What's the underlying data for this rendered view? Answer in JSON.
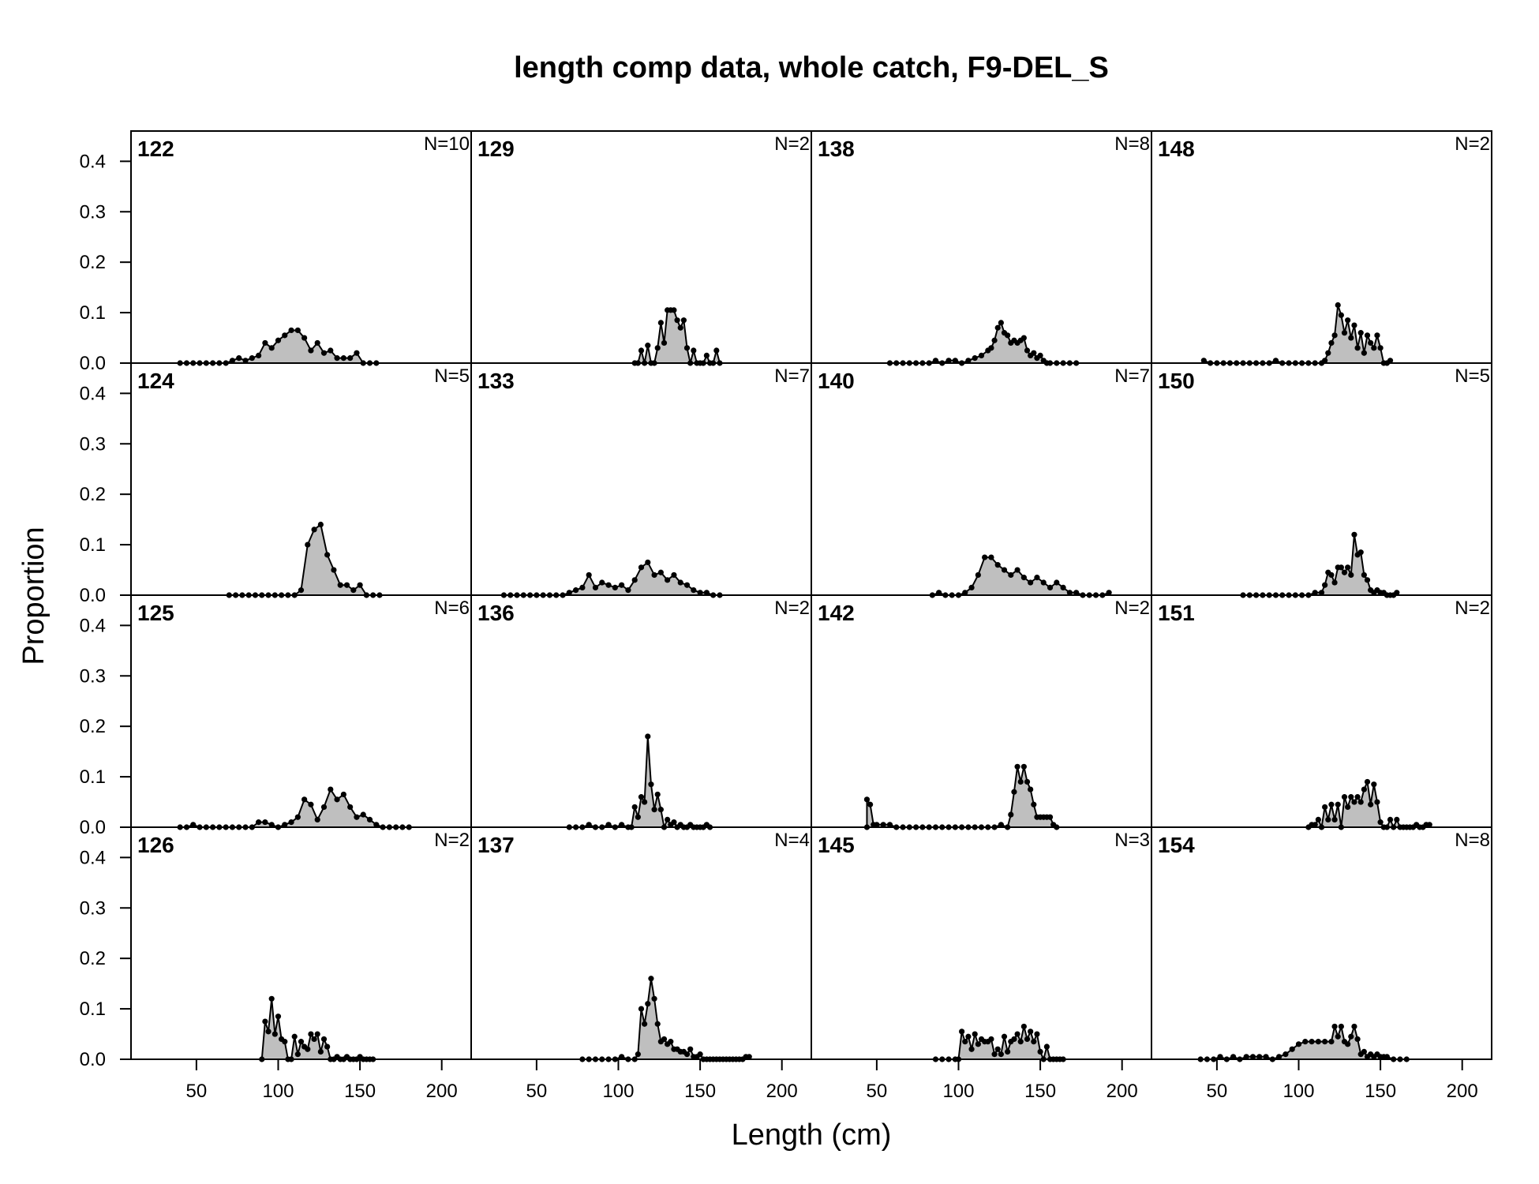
{
  "chart_data": {
    "type": "area",
    "title": "length comp data, whole catch, F9-DEL_S",
    "xlabel": "Length (cm)",
    "ylabel": "Proportion",
    "xlim": [
      10,
      218
    ],
    "ylim": [
      0,
      0.46
    ],
    "x_ticks": [
      "50",
      "100",
      "150",
      "200"
    ],
    "y_ticks": [
      "0.0",
      "0.1",
      "0.2",
      "0.3",
      "0.4"
    ],
    "layout": {
      "rows": 4,
      "cols": 4,
      "order": "column-major"
    },
    "fill_color": "#bfbfbf",
    "line_color": "#000000",
    "panels": [
      {
        "label": "122",
        "n": "N=10",
        "x": [
          40,
          44,
          48,
          52,
          56,
          60,
          64,
          68,
          72,
          76,
          80,
          84,
          88,
          92,
          96,
          100,
          104,
          108,
          112,
          116,
          120,
          124,
          128,
          132,
          136,
          140,
          144,
          148,
          152,
          156,
          160
        ],
        "y": [
          0.0,
          0.0,
          0.0,
          0.0,
          0.0,
          0.0,
          0.0,
          0.0,
          0.005,
          0.01,
          0.005,
          0.01,
          0.015,
          0.04,
          0.03,
          0.045,
          0.055,
          0.065,
          0.065,
          0.05,
          0.025,
          0.04,
          0.02,
          0.025,
          0.01,
          0.01,
          0.01,
          0.02,
          0.0,
          0.0,
          0.0
        ]
      },
      {
        "label": "124",
        "n": "N=5",
        "x": [
          70,
          74,
          78,
          82,
          86,
          90,
          94,
          98,
          102,
          106,
          110,
          114,
          118,
          122,
          126,
          130,
          134,
          138,
          142,
          146,
          150,
          154,
          158,
          162
        ],
        "y": [
          0.0,
          0.0,
          0.0,
          0.0,
          0.0,
          0.0,
          0.0,
          0.0,
          0.0,
          0.0,
          0.0,
          0.01,
          0.1,
          0.13,
          0.14,
          0.08,
          0.05,
          0.02,
          0.02,
          0.01,
          0.02,
          0.0,
          0.0,
          0.0
        ]
      },
      {
        "label": "125",
        "n": "N=6",
        "x": [
          40,
          44,
          48,
          52,
          56,
          60,
          64,
          68,
          72,
          76,
          80,
          84,
          88,
          92,
          96,
          100,
          104,
          108,
          112,
          116,
          120,
          124,
          128,
          132,
          136,
          140,
          144,
          148,
          152,
          156,
          160,
          164,
          168,
          172,
          176,
          180
        ],
        "y": [
          0.0,
          0.0,
          0.005,
          0.0,
          0.0,
          0.0,
          0.0,
          0.0,
          0.0,
          0.0,
          0.0,
          0.0,
          0.01,
          0.01,
          0.005,
          0.0,
          0.005,
          0.01,
          0.02,
          0.055,
          0.045,
          0.015,
          0.04,
          0.075,
          0.055,
          0.065,
          0.04,
          0.02,
          0.025,
          0.015,
          0.005,
          0.0,
          0.0,
          0.0,
          0.0,
          0.0
        ]
      },
      {
        "label": "126",
        "n": "N=2",
        "x": [
          90,
          92,
          94,
          96,
          98,
          100,
          102,
          104,
          106,
          108,
          110,
          112,
          114,
          116,
          118,
          120,
          122,
          124,
          126,
          128,
          130,
          132,
          134,
          136,
          138,
          140,
          142,
          144,
          146,
          148,
          150,
          152,
          154,
          156,
          158
        ],
        "y": [
          0.0,
          0.075,
          0.055,
          0.12,
          0.05,
          0.085,
          0.04,
          0.035,
          0.0,
          0.0,
          0.045,
          0.01,
          0.035,
          0.025,
          0.02,
          0.05,
          0.04,
          0.05,
          0.015,
          0.04,
          0.025,
          0.0,
          0.0,
          0.005,
          0.0,
          0.0,
          0.005,
          0.0,
          0.0,
          0.0,
          0.005,
          0.0,
          0.0,
          0.0,
          0.0
        ]
      },
      {
        "label": "129",
        "n": "N=2",
        "x": [
          110,
          112,
          114,
          116,
          118,
          120,
          122,
          124,
          126,
          128,
          130,
          132,
          134,
          136,
          138,
          140,
          142,
          144,
          146,
          148,
          150,
          152,
          154,
          156,
          158,
          160,
          162
        ],
        "y": [
          0.0,
          0.0,
          0.025,
          0.0,
          0.035,
          0.0,
          0.0,
          0.03,
          0.08,
          0.04,
          0.105,
          0.105,
          0.105,
          0.085,
          0.07,
          0.085,
          0.03,
          0.0,
          0.025,
          0.0,
          0.0,
          0.0,
          0.015,
          0.0,
          0.0,
          0.025,
          0.0
        ]
      },
      {
        "label": "133",
        "n": "N=7",
        "x": [
          30,
          34,
          38,
          42,
          46,
          50,
          54,
          58,
          62,
          66,
          70,
          74,
          78,
          82,
          86,
          90,
          94,
          98,
          102,
          106,
          110,
          114,
          118,
          122,
          126,
          130,
          134,
          138,
          142,
          146,
          150,
          154,
          158,
          162
        ],
        "y": [
          0.0,
          0.0,
          0.0,
          0.0,
          0.0,
          0.0,
          0.0,
          0.0,
          0.0,
          0.0,
          0.005,
          0.01,
          0.015,
          0.04,
          0.015,
          0.025,
          0.02,
          0.015,
          0.02,
          0.01,
          0.03,
          0.055,
          0.065,
          0.04,
          0.045,
          0.03,
          0.04,
          0.025,
          0.02,
          0.01,
          0.005,
          0.005,
          0.0,
          0.0
        ]
      },
      {
        "label": "136",
        "n": "N=2",
        "x": [
          70,
          74,
          78,
          82,
          86,
          90,
          94,
          98,
          102,
          106,
          108,
          110,
          112,
          114,
          116,
          118,
          120,
          122,
          124,
          126,
          128,
          130,
          132,
          134,
          136,
          138,
          140,
          142,
          144,
          146,
          148,
          150,
          152,
          154,
          156
        ],
        "y": [
          0.0,
          0.0,
          0.0,
          0.005,
          0.0,
          0.0,
          0.005,
          0.0,
          0.005,
          0.0,
          0.0,
          0.04,
          0.02,
          0.06,
          0.05,
          0.18,
          0.085,
          0.035,
          0.065,
          0.035,
          0.0,
          0.015,
          0.005,
          0.01,
          0.0,
          0.005,
          0.0,
          0.0,
          0.005,
          0.0,
          0.0,
          0.0,
          0.0,
          0.005,
          0.0
        ]
      },
      {
        "label": "137",
        "n": "N=4",
        "x": [
          78,
          82,
          86,
          90,
          94,
          98,
          102,
          106,
          110,
          112,
          114,
          116,
          118,
          120,
          122,
          124,
          126,
          128,
          130,
          132,
          134,
          136,
          138,
          140,
          142,
          144,
          146,
          148,
          150,
          152,
          154,
          156,
          158,
          160,
          162,
          164,
          166,
          168,
          170,
          172,
          174,
          176,
          178,
          180
        ],
        "y": [
          0.0,
          0.0,
          0.0,
          0.0,
          0.0,
          0.0,
          0.005,
          0.0,
          0.0,
          0.01,
          0.1,
          0.07,
          0.11,
          0.16,
          0.12,
          0.07,
          0.035,
          0.04,
          0.03,
          0.035,
          0.02,
          0.02,
          0.015,
          0.015,
          0.01,
          0.02,
          0.005,
          0.005,
          0.01,
          0.0,
          0.0,
          0.0,
          0.0,
          0.0,
          0.0,
          0.0,
          0.0,
          0.0,
          0.0,
          0.0,
          0.0,
          0.0,
          0.005,
          0.005
        ]
      },
      {
        "label": "138",
        "n": "N=8",
        "x": [
          58,
          62,
          66,
          70,
          74,
          78,
          82,
          86,
          90,
          94,
          98,
          102,
          106,
          110,
          114,
          118,
          120,
          122,
          124,
          126,
          128,
          130,
          132,
          134,
          136,
          138,
          140,
          142,
          144,
          146,
          148,
          150,
          152,
          154,
          156,
          160,
          164,
          168,
          172
        ],
        "y": [
          0.0,
          0.0,
          0.0,
          0.0,
          0.0,
          0.0,
          0.0,
          0.005,
          0.0,
          0.005,
          0.005,
          0.0,
          0.005,
          0.01,
          0.015,
          0.025,
          0.03,
          0.045,
          0.07,
          0.08,
          0.06,
          0.055,
          0.04,
          0.045,
          0.04,
          0.045,
          0.05,
          0.025,
          0.015,
          0.02,
          0.01,
          0.015,
          0.005,
          0.0,
          0.0,
          0.0,
          0.0,
          0.0,
          0.0
        ]
      },
      {
        "label": "140",
        "n": "N=7",
        "x": [
          84,
          88,
          92,
          96,
          100,
          104,
          108,
          112,
          116,
          120,
          124,
          128,
          132,
          136,
          140,
          144,
          148,
          152,
          156,
          160,
          164,
          168,
          172,
          176,
          180,
          184,
          188,
          192
        ],
        "y": [
          0.0,
          0.005,
          0.0,
          0.0,
          0.0,
          0.005,
          0.015,
          0.04,
          0.075,
          0.075,
          0.06,
          0.05,
          0.04,
          0.05,
          0.035,
          0.025,
          0.035,
          0.025,
          0.015,
          0.025,
          0.015,
          0.005,
          0.005,
          0.0,
          0.0,
          0.0,
          0.0,
          0.005
        ]
      },
      {
        "label": "142",
        "n": "N=2",
        "x": [
          44,
          44,
          46,
          48,
          50,
          54,
          58,
          62,
          66,
          70,
          74,
          78,
          82,
          86,
          90,
          94,
          98,
          102,
          106,
          110,
          114,
          118,
          122,
          126,
          130,
          132,
          134,
          136,
          138,
          140,
          142,
          144,
          146,
          148,
          150,
          152,
          154,
          156,
          158,
          160
        ],
        "y": [
          0.0,
          0.055,
          0.045,
          0.005,
          0.005,
          0.005,
          0.005,
          0.0,
          0.0,
          0.0,
          0.0,
          0.0,
          0.0,
          0.0,
          0.0,
          0.0,
          0.0,
          0.0,
          0.0,
          0.0,
          0.0,
          0.0,
          0.0,
          0.005,
          0.0,
          0.025,
          0.07,
          0.12,
          0.09,
          0.12,
          0.09,
          0.075,
          0.045,
          0.02,
          0.02,
          0.02,
          0.02,
          0.02,
          0.005,
          0.0
        ]
      },
      {
        "label": "145",
        "n": "N=3",
        "x": [
          86,
          90,
          94,
          98,
          100,
          102,
          104,
          106,
          108,
          110,
          112,
          114,
          116,
          118,
          120,
          122,
          124,
          126,
          128,
          130,
          132,
          134,
          136,
          138,
          140,
          142,
          144,
          146,
          148,
          150,
          152,
          154,
          156,
          158,
          160,
          162,
          164
        ],
        "y": [
          0.0,
          0.0,
          0.0,
          0.0,
          0.0,
          0.055,
          0.035,
          0.045,
          0.02,
          0.05,
          0.03,
          0.04,
          0.035,
          0.035,
          0.04,
          0.01,
          0.02,
          0.01,
          0.045,
          0.015,
          0.035,
          0.04,
          0.05,
          0.035,
          0.065,
          0.04,
          0.055,
          0.035,
          0.05,
          0.015,
          0.0,
          0.025,
          0.0,
          0.0,
          0.0,
          0.0,
          0.0
        ]
      },
      {
        "label": "148",
        "n": "N=2",
        "x": [
          42,
          46,
          50,
          54,
          58,
          62,
          66,
          70,
          74,
          78,
          82,
          86,
          90,
          94,
          98,
          102,
          106,
          110,
          114,
          116,
          118,
          120,
          122,
          124,
          126,
          128,
          130,
          132,
          134,
          136,
          138,
          140,
          142,
          144,
          146,
          148,
          150,
          152,
          154,
          156
        ],
        "y": [
          0.005,
          0.0,
          0.0,
          0.0,
          0.0,
          0.0,
          0.0,
          0.0,
          0.0,
          0.0,
          0.0,
          0.005,
          0.0,
          0.0,
          0.0,
          0.0,
          0.0,
          0.0,
          0.0,
          0.005,
          0.02,
          0.04,
          0.055,
          0.115,
          0.095,
          0.06,
          0.085,
          0.05,
          0.075,
          0.03,
          0.06,
          0.02,
          0.055,
          0.04,
          0.03,
          0.055,
          0.03,
          0.0,
          0.0,
          0.005
        ]
      },
      {
        "label": "150",
        "n": "N=5",
        "x": [
          66,
          70,
          74,
          78,
          82,
          86,
          90,
          94,
          98,
          102,
          106,
          110,
          114,
          116,
          118,
          120,
          122,
          124,
          126,
          128,
          130,
          132,
          134,
          136,
          138,
          140,
          142,
          144,
          146,
          148,
          150,
          152,
          154,
          156,
          158,
          160
        ],
        "y": [
          0.0,
          0.0,
          0.0,
          0.0,
          0.0,
          0.0,
          0.0,
          0.0,
          0.0,
          0.0,
          0.0,
          0.005,
          0.005,
          0.02,
          0.045,
          0.04,
          0.025,
          0.055,
          0.055,
          0.045,
          0.055,
          0.04,
          0.12,
          0.08,
          0.085,
          0.04,
          0.03,
          0.01,
          0.005,
          0.01,
          0.005,
          0.005,
          0.0,
          0.0,
          0.0,
          0.005
        ]
      },
      {
        "label": "151",
        "n": "N=2",
        "x": [
          106,
          108,
          110,
          112,
          114,
          116,
          118,
          120,
          122,
          124,
          126,
          128,
          130,
          132,
          134,
          136,
          138,
          140,
          142,
          144,
          146,
          148,
          150,
          152,
          154,
          156,
          158,
          160,
          162,
          164,
          166,
          168,
          170,
          172,
          174,
          176,
          178,
          180
        ],
        "y": [
          0.0,
          0.005,
          0.005,
          0.015,
          0.0,
          0.04,
          0.015,
          0.045,
          0.015,
          0.045,
          0.0,
          0.06,
          0.04,
          0.06,
          0.05,
          0.06,
          0.05,
          0.075,
          0.09,
          0.045,
          0.085,
          0.05,
          0.01,
          0.0,
          0.0,
          0.015,
          0.0,
          0.015,
          0.0,
          0.0,
          0.0,
          0.0,
          0.0,
          0.005,
          0.0,
          0.0,
          0.005,
          0.005
        ]
      },
      {
        "label": "154",
        "n": "N=8",
        "x": [
          40,
          44,
          48,
          52,
          56,
          60,
          64,
          68,
          72,
          76,
          80,
          84,
          88,
          92,
          96,
          100,
          104,
          108,
          112,
          116,
          120,
          122,
          124,
          126,
          128,
          130,
          132,
          134,
          136,
          138,
          140,
          142,
          144,
          146,
          148,
          150,
          152,
          154,
          158,
          162,
          166
        ],
        "y": [
          0.0,
          0.0,
          0.0,
          0.005,
          0.0,
          0.005,
          0.0,
          0.005,
          0.005,
          0.005,
          0.005,
          0.0,
          0.005,
          0.01,
          0.02,
          0.03,
          0.035,
          0.035,
          0.035,
          0.035,
          0.035,
          0.065,
          0.045,
          0.065,
          0.035,
          0.03,
          0.045,
          0.065,
          0.04,
          0.01,
          0.015,
          0.005,
          0.01,
          0.005,
          0.01,
          0.005,
          0.005,
          0.005,
          0.0,
          0.0,
          0.0
        ]
      }
    ]
  }
}
